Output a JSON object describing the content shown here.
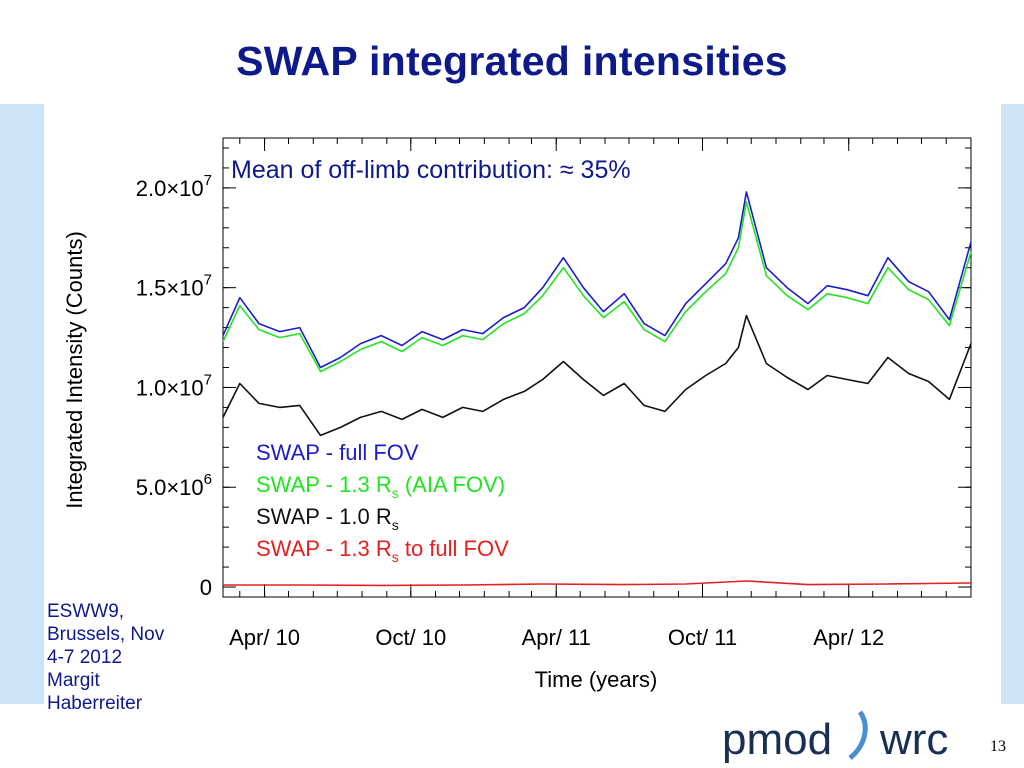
{
  "slide": {
    "title": "SWAP integrated intensities",
    "page_number": "13",
    "credit": [
      "ESWW9,",
      "Brussels, Nov",
      "4-7 2012",
      "Margit",
      "Haberreiter"
    ],
    "logo": {
      "left": "pmod",
      "right": "wrc"
    },
    "colors": {
      "title": "#0e1a8c",
      "side_band": "#cde4f7"
    }
  },
  "chart_data": {
    "type": "line",
    "title": "Mean of off-limb contribution: ≈ 35%",
    "xlabel": "Time (years)",
    "ylabel": "Integrated Intensity (Counts)",
    "xlim": [
      "2010-02-08",
      "2012-09-01"
    ],
    "ylim": [
      -500000,
      22500000
    ],
    "x_ticks": [
      {
        "date": "2010-04-01",
        "label": "Apr/  10"
      },
      {
        "date": "2010-10-01",
        "label": "Oct/  10"
      },
      {
        "date": "2011-04-01",
        "label": "Apr/  11"
      },
      {
        "date": "2011-10-01",
        "label": "Oct/  11"
      },
      {
        "date": "2012-04-01",
        "label": "Apr/  12"
      }
    ],
    "y_ticks": [
      {
        "value": 0,
        "label": "0",
        "mantissa": "",
        "exp": ""
      },
      {
        "value": 5000000,
        "label": "",
        "mantissa": "5.0×10",
        "exp": "6"
      },
      {
        "value": 10000000,
        "label": "",
        "mantissa": "1.0×10",
        "exp": "7"
      },
      {
        "value": 15000000,
        "label": "",
        "mantissa": "1.5×10",
        "exp": "7"
      },
      {
        "value": 20000000,
        "label": "",
        "mantissa": "2.0×10",
        "exp": "7"
      }
    ],
    "grid": false,
    "legend_position": "lower-left",
    "series": [
      {
        "name": "SWAP - full FOV",
        "color": "#1c1ccd",
        "x": [
          "2010-02-08",
          "2010-03-01",
          "2010-03-25",
          "2010-04-20",
          "2010-05-15",
          "2010-06-10",
          "2010-07-05",
          "2010-07-30",
          "2010-08-25",
          "2010-09-20",
          "2010-10-15",
          "2010-11-10",
          "2010-12-05",
          "2010-12-30",
          "2011-01-25",
          "2011-02-20",
          "2011-03-15",
          "2011-04-10",
          "2011-05-05",
          "2011-05-30",
          "2011-06-25",
          "2011-07-20",
          "2011-08-15",
          "2011-09-10",
          "2011-10-05",
          "2011-10-30",
          "2011-11-15",
          "2011-11-25",
          "2011-12-20",
          "2012-01-15",
          "2012-02-10",
          "2012-03-05",
          "2012-03-30",
          "2012-04-25",
          "2012-05-20",
          "2012-06-15",
          "2012-07-10",
          "2012-08-05",
          "2012-09-01"
        ],
        "values": [
          12600000,
          14500000,
          13200000,
          12800000,
          13000000,
          11000000,
          11500000,
          12200000,
          12600000,
          12100000,
          12800000,
          12400000,
          12900000,
          12700000,
          13500000,
          14000000,
          15000000,
          16500000,
          15000000,
          13800000,
          14700000,
          13200000,
          12600000,
          14200000,
          15200000,
          16200000,
          17500000,
          19800000,
          16000000,
          15000000,
          14200000,
          15100000,
          14900000,
          14600000,
          16500000,
          15300000,
          14800000,
          13400000,
          17300000
        ]
      },
      {
        "name": "SWAP - 1.3 Rs (AIA FOV)",
        "color": "#22e422",
        "x": [
          "2010-02-08",
          "2010-03-01",
          "2010-03-25",
          "2010-04-20",
          "2010-05-15",
          "2010-06-10",
          "2010-07-05",
          "2010-07-30",
          "2010-08-25",
          "2010-09-20",
          "2010-10-15",
          "2010-11-10",
          "2010-12-05",
          "2010-12-30",
          "2011-01-25",
          "2011-02-20",
          "2011-03-15",
          "2011-04-10",
          "2011-05-05",
          "2011-05-30",
          "2011-06-25",
          "2011-07-20",
          "2011-08-15",
          "2011-09-10",
          "2011-10-05",
          "2011-10-30",
          "2011-11-15",
          "2011-11-25",
          "2011-12-20",
          "2012-01-15",
          "2012-02-10",
          "2012-03-05",
          "2012-03-30",
          "2012-04-25",
          "2012-05-20",
          "2012-06-15",
          "2012-07-10",
          "2012-08-05",
          "2012-09-01"
        ],
        "values": [
          12300000,
          14100000,
          12900000,
          12500000,
          12700000,
          10800000,
          11300000,
          11900000,
          12300000,
          11800000,
          12500000,
          12100000,
          12600000,
          12400000,
          13200000,
          13700000,
          14600000,
          16000000,
          14600000,
          13500000,
          14300000,
          12900000,
          12300000,
          13800000,
          14800000,
          15700000,
          17000000,
          19300000,
          15600000,
          14600000,
          13900000,
          14700000,
          14500000,
          14200000,
          16000000,
          14900000,
          14400000,
          13100000,
          16800000
        ]
      },
      {
        "name": "SWAP - 1.0 Rs",
        "color": "#111111",
        "x": [
          "2010-02-08",
          "2010-03-01",
          "2010-03-25",
          "2010-04-20",
          "2010-05-15",
          "2010-06-10",
          "2010-07-05",
          "2010-07-30",
          "2010-08-25",
          "2010-09-20",
          "2010-10-15",
          "2010-11-10",
          "2010-12-05",
          "2010-12-30",
          "2011-01-25",
          "2011-02-20",
          "2011-03-15",
          "2011-04-10",
          "2011-05-05",
          "2011-05-30",
          "2011-06-25",
          "2011-07-20",
          "2011-08-15",
          "2011-09-10",
          "2011-10-05",
          "2011-10-30",
          "2011-11-15",
          "2011-11-25",
          "2011-12-20",
          "2012-01-15",
          "2012-02-10",
          "2012-03-05",
          "2012-03-30",
          "2012-04-25",
          "2012-05-20",
          "2012-06-15",
          "2012-07-10",
          "2012-08-05",
          "2012-09-01"
        ],
        "values": [
          8500000,
          10200000,
          9200000,
          9000000,
          9100000,
          7600000,
          8000000,
          8500000,
          8800000,
          8400000,
          8900000,
          8500000,
          9000000,
          8800000,
          9400000,
          9800000,
          10400000,
          11300000,
          10400000,
          9600000,
          10200000,
          9100000,
          8800000,
          9900000,
          10600000,
          11200000,
          12000000,
          13600000,
          11200000,
          10500000,
          9900000,
          10600000,
          10400000,
          10200000,
          11500000,
          10700000,
          10300000,
          9400000,
          12200000
        ]
      },
      {
        "name": "SWAP - 1.3 Rs to full FOV",
        "color": "#e52020",
        "x": [
          "2010-02-08",
          "2010-05-15",
          "2010-08-25",
          "2010-12-05",
          "2011-03-15",
          "2011-06-25",
          "2011-09-10",
          "2011-11-25",
          "2012-02-10",
          "2012-05-20",
          "2012-09-01"
        ],
        "values": [
          100000,
          100000,
          80000,
          100000,
          150000,
          120000,
          150000,
          300000,
          120000,
          150000,
          200000
        ]
      }
    ],
    "legend": [
      {
        "pre": "SWAP - full FOV",
        "sub": "",
        "post": "",
        "color": "#1c1ccd"
      },
      {
        "pre": "SWAP - 1.3 R",
        "sub": "s",
        "post": " (AIA FOV)",
        "color": "#22e422"
      },
      {
        "pre": "SWAP - 1.0 R",
        "sub": "s",
        "post": "",
        "color": "#111111"
      },
      {
        "pre": "SWAP - 1.3 R",
        "sub": "s",
        "post": " to full FOV",
        "color": "#e52020"
      }
    ]
  }
}
